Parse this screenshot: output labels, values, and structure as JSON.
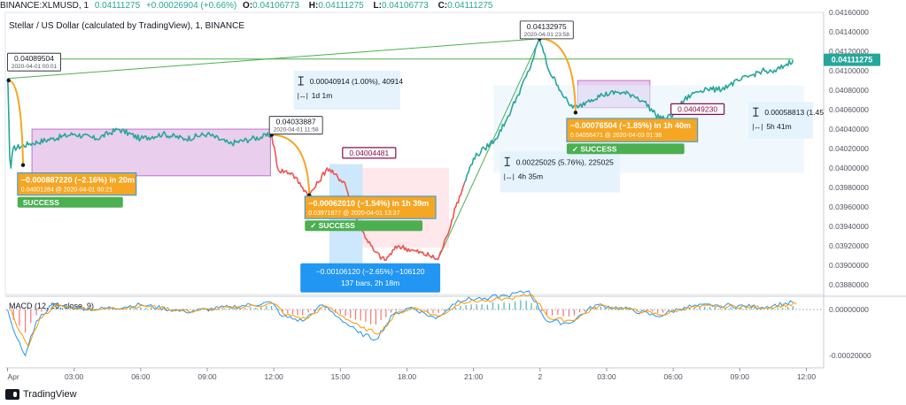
{
  "header": {
    "symbol": "BINANCE:XLMUSD, 1",
    "last": "0.04111275",
    "change": "+0.00026904 (+0.66%)",
    "o_label": "O:",
    "o": "0.04106773",
    "h_label": "H:",
    "h": "0.04111275",
    "l_label": "L:",
    "l": "0.04106773",
    "c_label": "C:",
    "c": "0.04111275"
  },
  "legend_title": "Stellar / US Dollar (calculated by TradingView), 1, BINANCE",
  "macd_label": "MACD (12, 26, close, 9)",
  "footer": {
    "brand": "TradingView"
  },
  "colors": {
    "teal": "#26a69a",
    "red": "#ef5350",
    "orange": "#f5a623",
    "green_line": "#4caf50",
    "purple_fill": "#e1bee7",
    "blue_box": "#2196f3",
    "success": "#4caf50"
  },
  "chart_data": {
    "type": "line",
    "title": "Stellar / US Dollar (calculated by TradingView), 1, BINANCE",
    "ylim": [
      0.0387,
      0.0416
    ],
    "price_ticks": [
      "0.04160000",
      "0.04140000",
      "0.04120000",
      "0.04100000",
      "0.04080000",
      "0.04060000",
      "0.04040000",
      "0.04020000",
      "0.04000000",
      "0.03980000",
      "0.03960000",
      "0.03940000",
      "0.03920000",
      "0.03900000",
      "0.03880000"
    ],
    "macd_ticks": [
      "0.00000000",
      "-0.00020000"
    ],
    "time_ticks": [
      "Apr",
      "03:00",
      "06:00",
      "09:00",
      "12:00",
      "15:00",
      "18:00",
      "21:00",
      "2",
      "03:00",
      "06:00",
      "09:00",
      "12:00"
    ],
    "last_price_label": "0.04111275",
    "series": [
      {
        "color": "teal",
        "points": [
          [
            0.0,
            0.04092
          ],
          [
            0.02,
            0.04085
          ],
          [
            0.06,
            0.0405
          ],
          [
            0.1,
            0.0401
          ],
          [
            0.15,
            0.04
          ],
          [
            0.25,
            0.0402
          ],
          [
            1.0,
            0.04025
          ],
          [
            2.0,
            0.0403
          ],
          [
            3.0,
            0.04035
          ],
          [
            4.0,
            0.0403
          ],
          [
            5.0,
            0.0404
          ],
          [
            6.0,
            0.0403
          ],
          [
            7.0,
            0.04035
          ],
          [
            8.0,
            0.0403
          ],
          [
            9.0,
            0.04035
          ],
          [
            10.0,
            0.04025
          ],
          [
            11.0,
            0.0403
          ],
          [
            11.9,
            0.04034
          ]
        ]
      },
      {
        "color": "red",
        "points": [
          [
            11.9,
            0.04034
          ],
          [
            12.2,
            0.03998
          ],
          [
            12.8,
            0.03995
          ],
          [
            13.3,
            0.0398
          ],
          [
            13.6,
            0.03972
          ],
          [
            14.0,
            0.03985
          ],
          [
            14.4,
            0.04
          ],
          [
            14.7,
            0.03994
          ],
          [
            15.2,
            0.03985
          ],
          [
            15.6,
            0.03955
          ],
          [
            16.0,
            0.03935
          ],
          [
            16.5,
            0.03915
          ],
          [
            17.0,
            0.03905
          ],
          [
            17.6,
            0.0392
          ],
          [
            18.3,
            0.03915
          ],
          [
            19.0,
            0.0391
          ],
          [
            19.4,
            0.03906
          ],
          [
            19.8,
            0.0393
          ],
          [
            20.2,
            0.0396
          ],
          [
            20.6,
            0.03985
          ]
        ]
      },
      {
        "color": "teal",
        "points": [
          [
            20.6,
            0.03985
          ],
          [
            21.0,
            0.0401
          ],
          [
            21.5,
            0.0402
          ],
          [
            22.0,
            0.0403
          ],
          [
            22.5,
            0.0405
          ],
          [
            23.0,
            0.04075
          ],
          [
            23.5,
            0.041
          ],
          [
            23.98,
            0.04133
          ],
          [
            24.4,
            0.041
          ],
          [
            24.8,
            0.04085
          ],
          [
            25.3,
            0.04065
          ],
          [
            25.7,
            0.04062
          ],
          [
            26.2,
            0.0407
          ],
          [
            26.8,
            0.04075
          ],
          [
            27.5,
            0.04078
          ],
          [
            28.2,
            0.04075
          ],
          [
            28.7,
            0.04068
          ],
          [
            29.2,
            0.04055
          ],
          [
            29.6,
            0.0405
          ],
          [
            30.0,
            0.04055
          ],
          [
            30.5,
            0.0407
          ],
          [
            31.0,
            0.04078
          ],
          [
            31.5,
            0.04082
          ],
          [
            32.0,
            0.0408
          ],
          [
            32.5,
            0.04085
          ],
          [
            33.0,
            0.0409
          ],
          [
            33.5,
            0.04095
          ],
          [
            34.0,
            0.041
          ],
          [
            34.5,
            0.04098
          ],
          [
            35.0,
            0.04105
          ],
          [
            35.4,
            0.04111
          ]
        ]
      }
    ],
    "trend_lines": [
      {
        "color": "green_line",
        "points": [
          [
            0.0,
            0.04092
          ],
          [
            23.98,
            0.04133
          ]
        ]
      },
      {
        "color": "green_line",
        "points": [
          [
            19.4,
            0.03906
          ],
          [
            23.98,
            0.04133
          ]
        ]
      },
      {
        "color": "green_line",
        "points": [
          [
            0.0,
            0.04112
          ],
          [
            35.4,
            0.04112
          ]
        ]
      }
    ],
    "arcs": [
      {
        "from": [
          0.05,
          0.0409
        ],
        "to": [
          0.7,
          0.04003
        ]
      },
      {
        "from": [
          11.9,
          0.04034
        ],
        "to": [
          13.6,
          0.03972
        ]
      },
      {
        "from": [
          23.98,
          0.04133
        ],
        "to": [
          25.6,
          0.04057
        ]
      }
    ],
    "rects": [
      {
        "kind": "purple",
        "x0": 1.1,
        "x1": 11.85,
        "y0": 0.0404,
        "y1": 0.03992
      },
      {
        "kind": "purple",
        "x0": 25.7,
        "x1": 28.95,
        "y0": 0.0409,
        "y1": 0.04062
      },
      {
        "kind": "blue",
        "x0": 14.5,
        "x1": 16.0,
        "y0": 0.04004,
        "y1": 0.03898
      },
      {
        "kind": "lightblue",
        "x0": 21.9,
        "x1": 35.9,
        "y0": 0.04085,
        "y1": 0.03995
      },
      {
        "kind": "red",
        "x0": 16.0,
        "x1": 19.9,
        "y0": 0.04,
        "y1": 0.03918
      }
    ],
    "labels": [
      {
        "id": "l1",
        "text": "0.04089504",
        "sub": "2020-04-01 00:01",
        "x": 0.0,
        "y": 0.04118,
        "style": "white"
      },
      {
        "id": "l2",
        "text": "0.04033887",
        "sub": "2020-04-01 11:58",
        "x": 11.8,
        "y": 0.04053,
        "style": "white"
      },
      {
        "id": "l3",
        "text": "0.04004481",
        "sub": "",
        "x": 15.1,
        "y": 0.04021,
        "style": "darkred"
      },
      {
        "id": "l4",
        "text": "0.04132975",
        "sub": "2020-04-01 23:58",
        "x": 23.1,
        "y": 0.04151,
        "style": "white"
      },
      {
        "id": "l5",
        "text": "0.04049230",
        "sub": "",
        "x": 29.9,
        "y": 0.04066,
        "style": "darkred"
      }
    ],
    "stat_boxes": [
      {
        "id": "s1",
        "line1": "0.00040914 (1.00%), 40914",
        "line2": "1d 1m",
        "x0": 12.9,
        "x1": 17.7,
        "y0": 0.041,
        "y1": 0.0406
      },
      {
        "id": "s2",
        "line1": "0.00225025 (5.76%), 225025",
        "line2": "4h 35m",
        "x0": 22.2,
        "x1": 27.6,
        "y0": 0.04017,
        "y1": 0.03975
      },
      {
        "id": "s3",
        "line1": "0.00058813 (1.45",
        "line2": "5h 41m",
        "x0": 33.4,
        "x1": 36.3,
        "y0": 0.04068,
        "y1": 0.0403
      }
    ],
    "measure_boxes": [
      {
        "id": "m1",
        "line1": "−0.000887220 (−2.16%) in 20m",
        "line2": "0.04001284 @ 2020-04-01  00:21",
        "x0": 0.45,
        "x1": 5.8,
        "y0": 0.03995,
        "y1": 0.03972,
        "success": "SUCCESS"
      },
      {
        "id": "m2",
        "line1": "−0.00062010 (−1.54%) in 1h 39m",
        "line2": "0.03971877 @ 2020-04-01  13:37",
        "x0": 13.4,
        "x1": 19.3,
        "y0": 0.03971,
        "y1": 0.03948,
        "success": "✓ SUCCESS"
      },
      {
        "id": "m3",
        "line1": "−0.00076504 (−1.85%) in 1h 40m",
        "line2": "0.04056471 @ 2020-04-03  01:38",
        "x0": 25.2,
        "x1": 31.1,
        "y0": 0.04051,
        "y1": 0.04027,
        "success": "✓ SUCCESS"
      }
    ],
    "blue_label": {
      "line1": "−0.00106120 (−2.65%) −106120",
      "line2": "137 bars, 2h 18m",
      "x0": 13.2,
      "x1": 19.5,
      "y0": 0.03902,
      "y1": 0.03872
    },
    "macd_series": [
      [
        0.0,
        0.0
      ],
      [
        0.4,
        -0.00012
      ],
      [
        0.8,
        -0.0002
      ],
      [
        1.3,
        -5e-05
      ],
      [
        2.0,
        2e-05
      ],
      [
        4.0,
        0.0
      ],
      [
        6.0,
        2e-05
      ],
      [
        8.0,
        -1e-05
      ],
      [
        10.0,
        1e-05
      ],
      [
        11.9,
        3e-05
      ],
      [
        12.4,
        -3e-05
      ],
      [
        13.3,
        -5e-05
      ],
      [
        14.2,
        2e-05
      ],
      [
        15.0,
        -4e-05
      ],
      [
        15.8,
        -0.0001
      ],
      [
        16.6,
        -0.00013
      ],
      [
        17.4,
        -2e-05
      ],
      [
        18.2,
        1e-05
      ],
      [
        19.3,
        -4e-05
      ],
      [
        20.3,
        4e-05
      ],
      [
        21.5,
        5e-05
      ],
      [
        22.5,
        6e-05
      ],
      [
        23.5,
        8e-05
      ],
      [
        24.3,
        -5e-05
      ],
      [
        25.3,
        -6e-05
      ],
      [
        26.5,
        2e-05
      ],
      [
        28.0,
        0.0
      ],
      [
        29.3,
        -3e-05
      ],
      [
        30.5,
        1e-05
      ],
      [
        32.0,
        2e-05
      ],
      [
        34.0,
        1e-05
      ],
      [
        35.4,
        3e-05
      ]
    ]
  }
}
